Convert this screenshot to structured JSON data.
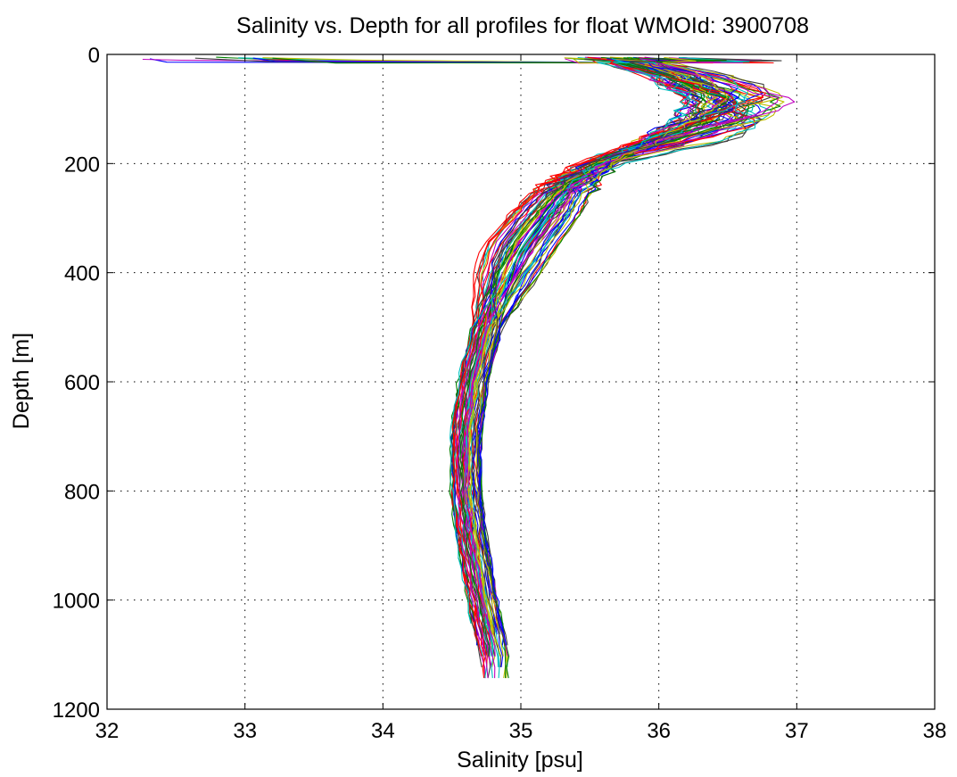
{
  "chart_data": {
    "type": "line",
    "title": "Salinity vs. Depth for all profiles for float WMOId: 3900708",
    "xlabel": "Salinity [psu]",
    "ylabel": "Depth [m]",
    "xlim": [
      32,
      38
    ],
    "ylim": [
      0,
      1200
    ],
    "y_reversed": true,
    "grid": true,
    "x_ticks": [
      "32",
      "33",
      "34",
      "35",
      "36",
      "37",
      "38"
    ],
    "y_ticks": [
      "0",
      "200",
      "400",
      "600",
      "800",
      "1000",
      "1200"
    ],
    "colors": [
      "#0000ff",
      "#008000",
      "#ff0000",
      "#00bfbf",
      "#bf00bf",
      "#bfbf00",
      "#404040"
    ],
    "profile_count": 70,
    "representative_profile": {
      "depth": [
        5,
        15,
        40,
        80,
        120,
        160,
        200,
        250,
        300,
        350,
        400,
        450,
        500,
        550,
        600,
        700,
        800,
        900,
        1000,
        1100
      ],
      "salinity": [
        35.5,
        35.8,
        36.1,
        36.3,
        36.2,
        35.9,
        35.55,
        35.3,
        35.15,
        35.0,
        34.9,
        34.82,
        34.75,
        34.7,
        34.65,
        34.6,
        34.6,
        34.65,
        34.72,
        34.8
      ]
    },
    "notable_features": [
      {
        "description": "surface fresh outliers",
        "salinity": [
          32.2,
          33.3
        ],
        "depth": [
          5,
          25
        ]
      },
      {
        "description": "subsurface salinity maximum",
        "salinity": [
          36.6,
          37.05
        ],
        "depth": [
          50,
          160
        ]
      },
      {
        "description": "salinity minimum",
        "salinity": [
          34.5,
          34.7
        ],
        "depth": [
          600,
          900
        ]
      }
    ]
  }
}
